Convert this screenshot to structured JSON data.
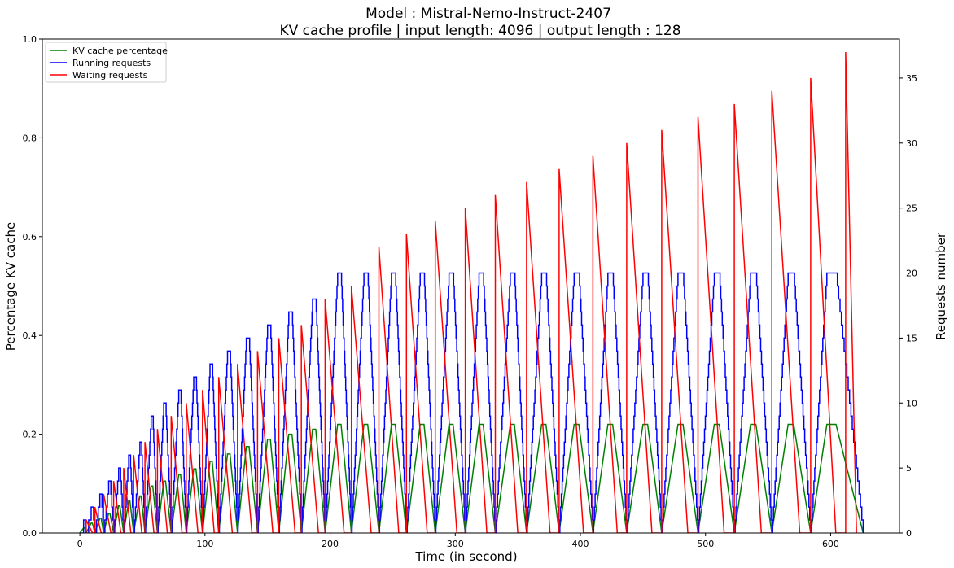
{
  "chart_data": {
    "type": "line",
    "title": "Model : Mistral-Nemo-Instruct-2407",
    "subtitle": "KV cache profile | input length: 4096 | output length : 128",
    "xlabel": "Time (in second)",
    "ylabel_left": "Percentage KV cache",
    "ylabel_right": "Requests number",
    "xlim": [
      -30,
      655
    ],
    "ylim_left": [
      0,
      1.0
    ],
    "ylim_right": [
      0,
      38
    ],
    "xticks": [
      "0",
      "100",
      "200",
      "300",
      "400",
      "500",
      "600"
    ],
    "yticks_left": [
      "0.0",
      "0.2",
      "0.4",
      "0.6",
      "0.8",
      "1.0"
    ],
    "yticks_right": [
      "0",
      "5",
      "10",
      "15",
      "20",
      "25",
      "30",
      "35"
    ],
    "legend_position": "upper-left",
    "grid": false,
    "colors": {
      "kv_cache": "#008000",
      "running": "#0000ff",
      "waiting": "#ff0000"
    },
    "series": [
      {
        "name": "KV cache percentage",
        "axis": "left",
        "cycles": [
          {
            "start": 0,
            "peak_time": 3,
            "end": 5,
            "peak": 0.01
          },
          {
            "start": 5,
            "peak_time": 9,
            "end": 12,
            "peak": 0.02
          },
          {
            "start": 12,
            "peak_time": 16,
            "end": 19,
            "peak": 0.03
          },
          {
            "start": 19,
            "peak_time": 23,
            "end": 27,
            "peak": 0.04
          },
          {
            "start": 27,
            "peak_time": 31,
            "end": 35,
            "peak": 0.055
          },
          {
            "start": 35,
            "peak_time": 39,
            "end": 43,
            "peak": 0.065
          },
          {
            "start": 43,
            "peak_time": 48,
            "end": 52,
            "peak": 0.075
          },
          {
            "start": 52,
            "peak_time": 57,
            "end": 62,
            "peak": 0.095
          },
          {
            "start": 62,
            "peak_time": 67,
            "end": 73,
            "peak": 0.105
          },
          {
            "start": 73,
            "peak_time": 79,
            "end": 85,
            "peak": 0.118
          },
          {
            "start": 85,
            "peak_time": 91,
            "end": 98,
            "peak": 0.13
          },
          {
            "start": 98,
            "peak_time": 104,
            "end": 111,
            "peak": 0.145
          },
          {
            "start": 111,
            "peak_time": 118,
            "end": 126,
            "peak": 0.16
          },
          {
            "start": 126,
            "peak_time": 133,
            "end": 142,
            "peak": 0.175
          },
          {
            "start": 142,
            "peak_time": 150,
            "end": 159,
            "peak": 0.19
          },
          {
            "start": 159,
            "peak_time": 167,
            "end": 177,
            "peak": 0.2
          },
          {
            "start": 177,
            "peak_time": 186,
            "end": 196,
            "peak": 0.21
          },
          {
            "start": 196,
            "peak_time": 206,
            "end": 217,
            "peak": 0.22
          },
          {
            "start": 217,
            "peak_time": 227,
            "end": 239,
            "peak": 0.22
          },
          {
            "start": 239,
            "peak_time": 249,
            "end": 261,
            "peak": 0.22
          },
          {
            "start": 261,
            "peak_time": 272,
            "end": 284,
            "peak": 0.22
          },
          {
            "start": 284,
            "peak_time": 295,
            "end": 308,
            "peak": 0.22
          },
          {
            "start": 308,
            "peak_time": 319,
            "end": 332,
            "peak": 0.22
          },
          {
            "start": 332,
            "peak_time": 344,
            "end": 357,
            "peak": 0.22
          },
          {
            "start": 357,
            "peak_time": 369,
            "end": 383,
            "peak": 0.22
          },
          {
            "start": 383,
            "peak_time": 395,
            "end": 410,
            "peak": 0.22
          },
          {
            "start": 410,
            "peak_time": 422,
            "end": 437,
            "peak": 0.22
          },
          {
            "start": 437,
            "peak_time": 450,
            "end": 465,
            "peak": 0.22
          },
          {
            "start": 465,
            "peak_time": 478,
            "end": 494,
            "peak": 0.22
          },
          {
            "start": 494,
            "peak_time": 507,
            "end": 523,
            "peak": 0.22
          },
          {
            "start": 523,
            "peak_time": 536,
            "end": 553,
            "peak": 0.22
          },
          {
            "start": 553,
            "peak_time": 566,
            "end": 584,
            "peak": 0.22
          },
          {
            "start": 584,
            "peak_time": 597,
            "end": 626,
            "peak": 0.22
          }
        ]
      },
      {
        "name": "Running requests",
        "axis": "right",
        "cycles": [
          {
            "start": 0,
            "peak_time": 3,
            "end": 5,
            "peak": 1
          },
          {
            "start": 5,
            "peak_time": 9,
            "end": 12,
            "peak": 2
          },
          {
            "start": 12,
            "peak_time": 16,
            "end": 19,
            "peak": 3
          },
          {
            "start": 19,
            "peak_time": 23,
            "end": 27,
            "peak": 4
          },
          {
            "start": 27,
            "peak_time": 31,
            "end": 35,
            "peak": 5
          },
          {
            "start": 35,
            "peak_time": 39,
            "end": 43,
            "peak": 6
          },
          {
            "start": 43,
            "peak_time": 48,
            "end": 52,
            "peak": 7
          },
          {
            "start": 52,
            "peak_time": 57,
            "end": 62,
            "peak": 9
          },
          {
            "start": 62,
            "peak_time": 67,
            "end": 73,
            "peak": 10
          },
          {
            "start": 73,
            "peak_time": 79,
            "end": 85,
            "peak": 11
          },
          {
            "start": 85,
            "peak_time": 91,
            "end": 98,
            "peak": 12
          },
          {
            "start": 98,
            "peak_time": 104,
            "end": 111,
            "peak": 13
          },
          {
            "start": 111,
            "peak_time": 118,
            "end": 126,
            "peak": 14
          },
          {
            "start": 126,
            "peak_time": 133,
            "end": 142,
            "peak": 15
          },
          {
            "start": 142,
            "peak_time": 150,
            "end": 159,
            "peak": 16
          },
          {
            "start": 159,
            "peak_time": 167,
            "end": 177,
            "peak": 17
          },
          {
            "start": 177,
            "peak_time": 186,
            "end": 196,
            "peak": 18
          },
          {
            "start": 196,
            "peak_time": 206,
            "end": 217,
            "peak": 20
          },
          {
            "start": 217,
            "peak_time": 227,
            "end": 239,
            "peak": 20
          },
          {
            "start": 239,
            "peak_time": 249,
            "end": 261,
            "peak": 20
          },
          {
            "start": 261,
            "peak_time": 272,
            "end": 284,
            "peak": 20
          },
          {
            "start": 284,
            "peak_time": 295,
            "end": 308,
            "peak": 20
          },
          {
            "start": 308,
            "peak_time": 319,
            "end": 332,
            "peak": 20
          },
          {
            "start": 332,
            "peak_time": 344,
            "end": 357,
            "peak": 20
          },
          {
            "start": 357,
            "peak_time": 369,
            "end": 383,
            "peak": 20
          },
          {
            "start": 383,
            "peak_time": 395,
            "end": 410,
            "peak": 20
          },
          {
            "start": 410,
            "peak_time": 422,
            "end": 437,
            "peak": 20
          },
          {
            "start": 437,
            "peak_time": 450,
            "end": 465,
            "peak": 20
          },
          {
            "start": 465,
            "peak_time": 478,
            "end": 494,
            "peak": 20
          },
          {
            "start": 494,
            "peak_time": 507,
            "end": 523,
            "peak": 20
          },
          {
            "start": 523,
            "peak_time": 536,
            "end": 553,
            "peak": 20
          },
          {
            "start": 553,
            "peak_time": 566,
            "end": 584,
            "peak": 20
          },
          {
            "start": 584,
            "peak_time": 597,
            "end": 626,
            "peak": 20
          }
        ]
      },
      {
        "name": "Waiting requests",
        "axis": "right",
        "spikes": [
          {
            "t": 5,
            "peak": 1
          },
          {
            "t": 12,
            "peak": 2
          },
          {
            "t": 19,
            "peak": 3
          },
          {
            "t": 27,
            "peak": 4
          },
          {
            "t": 35,
            "peak": 5
          },
          {
            "t": 43,
            "peak": 6
          },
          {
            "t": 52,
            "peak": 7
          },
          {
            "t": 62,
            "peak": 8
          },
          {
            "t": 73,
            "peak": 9
          },
          {
            "t": 85,
            "peak": 10
          },
          {
            "t": 98,
            "peak": 11
          },
          {
            "t": 111,
            "peak": 12
          },
          {
            "t": 126,
            "peak": 13
          },
          {
            "t": 142,
            "peak": 14
          },
          {
            "t": 159,
            "peak": 15
          },
          {
            "t": 177,
            "peak": 16
          },
          {
            "t": 196,
            "peak": 18
          },
          {
            "t": 217,
            "peak": 19
          },
          {
            "t": 239,
            "peak": 22
          },
          {
            "t": 261,
            "peak": 23
          },
          {
            "t": 284,
            "peak": 24
          },
          {
            "t": 308,
            "peak": 25
          },
          {
            "t": 332,
            "peak": 26
          },
          {
            "t": 357,
            "peak": 27
          },
          {
            "t": 383,
            "peak": 28
          },
          {
            "t": 410,
            "peak": 29
          },
          {
            "t": 437,
            "peak": 30
          },
          {
            "t": 465,
            "peak": 31
          },
          {
            "t": 494,
            "peak": 32
          },
          {
            "t": 523,
            "peak": 33
          },
          {
            "t": 553,
            "peak": 34
          },
          {
            "t": 584,
            "peak": 35
          },
          {
            "t": 612,
            "peak": 37
          }
        ]
      }
    ]
  }
}
